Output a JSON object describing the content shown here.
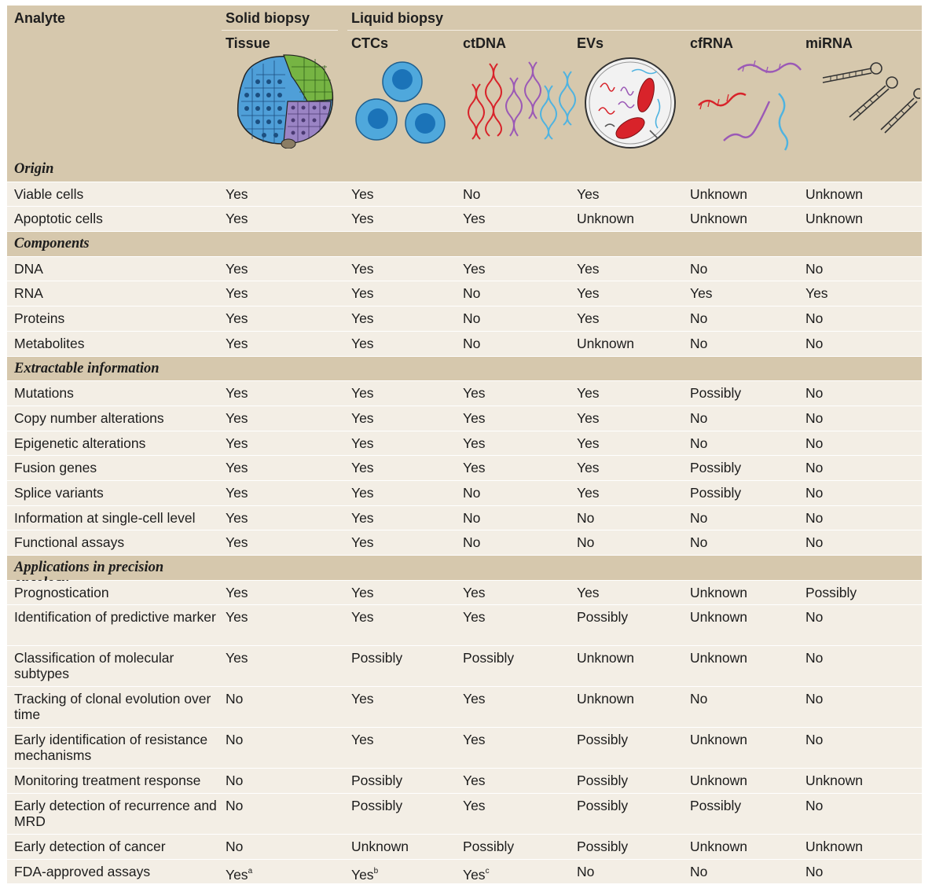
{
  "header": {
    "analyte": "Analyte",
    "solid_biopsy": "Solid biopsy",
    "liquid_biopsy": "Liquid biopsy",
    "columns": [
      "Tissue",
      "CTCs",
      "ctDNA",
      "EVs",
      "cfRNA",
      "miRNA"
    ]
  },
  "rows": [
    {
      "section": "Origin"
    },
    {
      "label": "Viable cells",
      "values": [
        "Yes",
        "Yes",
        "No",
        "Yes",
        "Unknown",
        "Unknown"
      ]
    },
    {
      "label": "Apoptotic cells",
      "values": [
        "Yes",
        "Yes",
        "Yes",
        "Unknown",
        "Unknown",
        "Unknown"
      ]
    },
    {
      "section": "Components"
    },
    {
      "label": "DNA",
      "values": [
        "Yes",
        "Yes",
        "Yes",
        "Yes",
        "No",
        "No"
      ]
    },
    {
      "label": "RNA",
      "values": [
        "Yes",
        "Yes",
        "No",
        "Yes",
        "Yes",
        "Yes"
      ]
    },
    {
      "label": "Proteins",
      "values": [
        "Yes",
        "Yes",
        "No",
        "Yes",
        "No",
        "No"
      ]
    },
    {
      "label": "Metabolites",
      "values": [
        "Yes",
        "Yes",
        "No",
        "Unknown",
        "No",
        "No"
      ]
    },
    {
      "section": "Extractable information"
    },
    {
      "label": "Mutations",
      "values": [
        "Yes",
        "Yes",
        "Yes",
        "Yes",
        "Possibly",
        "No"
      ]
    },
    {
      "label": "Copy number alterations",
      "values": [
        "Yes",
        "Yes",
        "Yes",
        "Yes",
        "No",
        "No"
      ]
    },
    {
      "label": "Epigenetic alterations",
      "values": [
        "Yes",
        "Yes",
        "Yes",
        "Yes",
        "No",
        "No"
      ]
    },
    {
      "label": "Fusion genes",
      "values": [
        "Yes",
        "Yes",
        "Yes",
        "Yes",
        "Possibly",
        "No"
      ]
    },
    {
      "label": "Splice variants",
      "values": [
        "Yes",
        "Yes",
        "No",
        "Yes",
        "Possibly",
        "No"
      ]
    },
    {
      "label": "Information at single-cell level",
      "values": [
        "Yes",
        "Yes",
        "No",
        "No",
        "No",
        "No"
      ]
    },
    {
      "label": "Functional assays",
      "values": [
        "Yes",
        "Yes",
        "No",
        "No",
        "No",
        "No"
      ]
    },
    {
      "section": "Applications in precision oncology"
    },
    {
      "label": "Prognostication",
      "values": [
        "Yes",
        "Yes",
        "Yes",
        "Yes",
        "Unknown",
        "Possibly"
      ]
    },
    {
      "label": "Identification of predictive marker",
      "tall": true,
      "values": [
        "Yes",
        "Yes",
        "Yes",
        "Possibly",
        "Unknown",
        "No"
      ]
    },
    {
      "label": "Classification of molecular subtypes",
      "tall": true,
      "values": [
        "Yes",
        "Possibly",
        "Possibly",
        "Unknown",
        "Unknown",
        "No"
      ]
    },
    {
      "label": "Tracking of clonal evolution over time",
      "tall": true,
      "values": [
        "No",
        "Yes",
        "Yes",
        "Unknown",
        "No",
        "No"
      ]
    },
    {
      "label": "Early identification of resistance mechanisms",
      "tall": true,
      "values": [
        "No",
        "Yes",
        "Yes",
        "Possibly",
        "Unknown",
        "No"
      ]
    },
    {
      "label": "Monitoring treatment response",
      "values": [
        "No",
        "Possibly",
        "Yes",
        "Possibly",
        "Unknown",
        "Unknown"
      ]
    },
    {
      "label": "Early detection of recurrence and MRD",
      "tall": true,
      "values": [
        "No",
        "Possibly",
        "Yes",
        "Possibly",
        "Possibly",
        "No"
      ]
    },
    {
      "label": "Early detection of cancer",
      "values": [
        "No",
        "Unknown",
        "Possibly",
        "Possibly",
        "Unknown",
        "Unknown"
      ]
    },
    {
      "label": "FDA-approved assays",
      "values": [
        "Yes",
        "Yes",
        "Yes",
        "No",
        "No",
        "No"
      ],
      "sups": [
        "a",
        "b",
        "c",
        "",
        "",
        ""
      ]
    }
  ]
}
